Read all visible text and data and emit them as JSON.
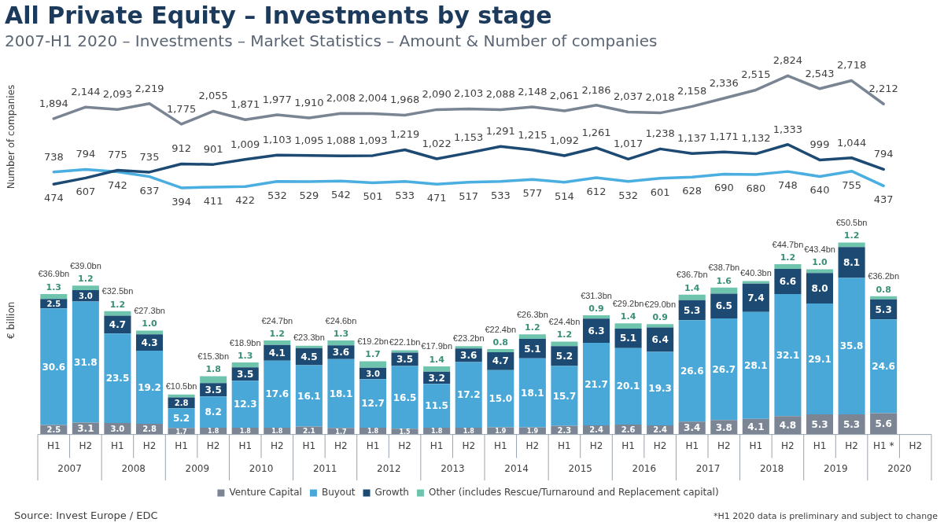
{
  "chart_data": [
    {
      "type": "line",
      "title": "All Private Equity – Investments by stage",
      "subtitle": "2007-H1 2020 – Investments – Market Statistics – Amount & Number of companies",
      "ylabel": "Number of companies",
      "categories": [
        null,
        null,
        null,
        null,
        null,
        null,
        null,
        null,
        null,
        null,
        null,
        null,
        null,
        null,
        null,
        null,
        null,
        null,
        null,
        null,
        null,
        null,
        null,
        null,
        null,
        null,
        null,
        null
      ],
      "tick_labels": false,
      "grid": false,
      "legend": false,
      "marker": "none",
      "line_style": "solid",
      "series": [
        {
          "color": "#7a8594",
          "values": [
            1894,
            2144,
            2093,
            2219,
            1775,
            2055,
            1871,
            1977,
            1910,
            2008,
            2004,
            1968,
            2090,
            2103,
            2088,
            2148,
            2061,
            2186,
            2037,
            2018,
            2158,
            2336,
            2515,
            2824,
            2543,
            2718,
            2212,
            null
          ],
          "value_labels": [
            "1,894",
            "2,144",
            "2,093",
            "2,219",
            "1,775",
            "2,055",
            "1,871",
            "1,977",
            "1,910",
            "2,008",
            "2,004",
            "1,968",
            "2,090",
            "2,103",
            "2,088",
            "2,148",
            "2,061",
            "2,186",
            "2,037",
            "2,018",
            "2,158",
            "2,336",
            "2,515",
            "2,824",
            "2,543",
            "2,718",
            "2,212",
            null
          ]
        },
        {
          "color": "#1d4a72",
          "values": [
            474,
            607,
            775,
            735,
            912,
            901,
            1009,
            1103,
            1095,
            1088,
            1093,
            1219,
            1022,
            1153,
            1291,
            1215,
            1092,
            1261,
            1017,
            1238,
            1137,
            1171,
            1132,
            1333,
            999,
            1044,
            794,
            null
          ],
          "value_labels": [
            "474",
            "607",
            "775",
            "735",
            "912",
            "901",
            "1,009",
            "1,103",
            "1,095",
            "1,088",
            "1,093",
            "1,219",
            "1,022",
            "1,153",
            "1,291",
            "1,215",
            "1,092",
            "1,261",
            "1,017",
            "1,238",
            "1,137",
            "1,171",
            "1,132",
            "1,333",
            "999",
            "1,044",
            "794",
            null
          ]
        },
        {
          "color": "#4aaee0",
          "values": [
            738,
            794,
            742,
            637,
            394,
            411,
            422,
            532,
            529,
            542,
            501,
            533,
            471,
            517,
            533,
            577,
            514,
            612,
            532,
            601,
            628,
            690,
            680,
            748,
            640,
            755,
            437,
            null
          ],
          "value_labels": [
            "738",
            "794",
            "742",
            "637",
            "394",
            "411",
            "422",
            "532",
            "529",
            "542",
            "501",
            "533",
            "471",
            "517",
            "533",
            "577",
            "514",
            "612",
            "532",
            "601",
            "628",
            "690",
            "680",
            "748",
            "640",
            "755",
            "437",
            null
          ]
        }
      ]
    },
    {
      "type": "bar",
      "stacked": true,
      "ylabel": "€ billion",
      "categories": [
        "H1",
        "H2",
        "H1",
        "H2",
        "H1",
        "H2",
        "H1",
        "H2",
        "H1",
        "H2",
        "H1",
        "H2",
        "H1",
        "H2",
        "H1",
        "H2",
        "H1",
        "H2",
        "H1",
        "H2",
        "H1",
        "H2",
        "H1",
        "H2",
        "H1",
        "H2",
        "H1 *",
        "H2"
      ],
      "tick_labels": "x",
      "grid": false,
      "legend": "bottom",
      "series": [
        {
          "name": "Venture Capital",
          "color": "#7b8594",
          "values": [
            2.5,
            3.1,
            3.0,
            2.8,
            1.7,
            1.8,
            1.8,
            1.8,
            2.1,
            1.7,
            1.8,
            1.5,
            1.8,
            1.8,
            1.9,
            1.9,
            2.3,
            2.4,
            2.6,
            2.4,
            3.4,
            3.8,
            4.1,
            4.8,
            5.3,
            5.3,
            5.6,
            null
          ],
          "value_labels": [
            "2.5",
            "3.1",
            "3.0",
            "2.8",
            "1.7",
            "1.8",
            "1.8",
            "1.8",
            "2.1",
            "1.7",
            "1.8",
            "1.5",
            "1.8",
            "1.8",
            "1.9",
            "1.9",
            "2.3",
            "2.4",
            "2.6",
            "2.4",
            "3.4",
            "3.8",
            "4.1",
            "4.8",
            "5.3",
            "5.3",
            "5.6",
            null
          ]
        },
        {
          "name": "Buyout",
          "color": "#4aa8d8",
          "values": [
            30.6,
            31.8,
            23.5,
            19.2,
            5.2,
            8.2,
            12.3,
            17.6,
            16.1,
            18.1,
            12.7,
            16.5,
            11.5,
            17.2,
            15.0,
            18.1,
            15.7,
            21.7,
            20.1,
            19.3,
            26.6,
            26.7,
            28.1,
            32.1,
            29.1,
            35.8,
            24.6,
            null
          ],
          "value_labels": [
            "30.6",
            "31.8",
            "23.5",
            "19.2",
            "5.2",
            "8.2",
            "12.3",
            "17.6",
            "16.1",
            "18.1",
            "12.7",
            "16.5",
            "11.5",
            "17.2",
            "15.0",
            "18.1",
            "15.7",
            "21.7",
            "20.1",
            "19.3",
            "26.6",
            "26.7",
            "28.1",
            "32.1",
            "29.1",
            "35.8",
            "24.6",
            null
          ]
        },
        {
          "name": "Growth",
          "color": "#1d4a72",
          "values": [
            2.5,
            3.0,
            4.7,
            4.3,
            2.8,
            3.5,
            3.5,
            4.1,
            4.5,
            3.6,
            3.0,
            3.5,
            3.2,
            3.6,
            4.7,
            5.1,
            5.2,
            6.3,
            5.1,
            6.4,
            5.3,
            6.5,
            7.4,
            6.6,
            8.0,
            8.1,
            5.3,
            null
          ],
          "value_labels": [
            "2.5",
            "3.0",
            "4.7",
            "4.3",
            "2.8",
            "3.5",
            "3.5",
            "4.1",
            "4.5",
            "3.6",
            "3.0",
            "3.5",
            "3.2",
            "3.6",
            "4.7",
            "5.1",
            "5.2",
            "6.3",
            "5.1",
            "6.4",
            "5.3",
            "6.5",
            "7.4",
            "6.6",
            "8.0",
            "8.1",
            "5.3",
            null
          ]
        },
        {
          "name": "Other (includes Rescue/Turnaround and Replacement capital)",
          "color": "#6fc4ae",
          "values": [
            1.3,
            1.2,
            1.2,
            1.0,
            0.8,
            1.8,
            1.3,
            1.2,
            0.6,
            1.3,
            1.7,
            0.6,
            1.4,
            0.6,
            0.8,
            1.2,
            1.2,
            0.9,
            1.4,
            0.9,
            1.4,
            1.6,
            0.7,
            1.2,
            1.0,
            1.2,
            0.8,
            null
          ],
          "value_labels": [
            "1.3",
            "1.2",
            "1.2",
            "1.0",
            null,
            "1.8",
            "1.3",
            "1.2",
            null,
            "1.3",
            "1.7",
            null,
            "1.4",
            null,
            "0.8",
            "1.2",
            "1.2",
            "0.9",
            "1.4",
            "0.9",
            "1.4",
            "1.6",
            null,
            "1.2",
            "1.0",
            "1.2",
            "0.8",
            null
          ]
        }
      ],
      "totals": [
        "€36.9bn",
        "€39.0bn",
        "€32.5bn",
        "€27.3bn",
        "€10.5bn",
        "€15.3bn",
        "€18.9bn",
        "€24.7bn",
        "€23.3bn",
        "€24.6bn",
        "€19.2bn",
        "€22.1bn",
        "€17.9bn",
        "€23.2bn",
        "€22.4bn",
        "€26.3bn",
        "€24.4bn",
        "€31.3bn",
        "€29.2bn",
        "€29.0bn",
        "€36.7bn",
        "€38.7bn",
        "€40.3bn",
        "€44.7bn",
        "€43.4bn",
        "€50.5bn",
        "€36.2bn",
        null
      ],
      "annotations": [
        "2007",
        "2008",
        "2009",
        "2010",
        "2011",
        "2012",
        "2013",
        "2014",
        "2015",
        "2016",
        "2017",
        "2018",
        "2019",
        "2020",
        "Source: Invest Europe / EDC",
        "*H1 2020 data is preliminary and subject to change"
      ]
    }
  ]
}
